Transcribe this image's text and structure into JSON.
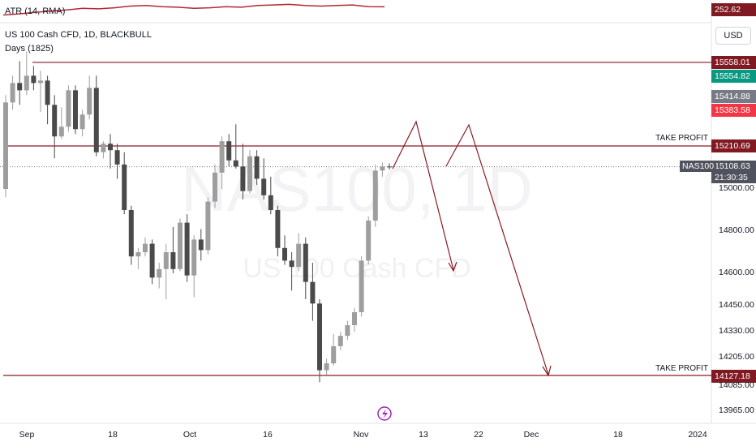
{
  "indicator_label": "ATR (14, RMA)",
  "atr_value": "252.62",
  "symbol_title": "US 100 Cash CFD, 1D, BLACKBULL",
  "days_label": "Days (1825)",
  "currency_button": "USD",
  "watermark_main": "NAS100, 1D",
  "watermark_sub": "US 100 Cash CFD",
  "symbol_tag": "NAS100",
  "countdown": "21:30:35",
  "take_profit_upper": "TAKE PROFIT",
  "take_profit_lower": "TAKE PROFIT",
  "price_labels": {
    "p15558": "15558.01",
    "p15554": "15554.82",
    "p15414": "15414.88",
    "p15383": "15383.58",
    "p15210": "15210.69",
    "p15108": "15108.63",
    "p14127": "14127.18"
  },
  "colors": {
    "level_line": "#8b1a24",
    "bull_candle": "#9e9e9e",
    "bear_candle": "#4a4a4a",
    "dark_red_pill": "#801922",
    "green_pill": "#089981",
    "red_pill": "#f23645",
    "grey_pill": "#787b86",
    "symbol_pill": "#50535e"
  },
  "chart_data": {
    "type": "candlestick",
    "y_axis_ticks": [
      "15000.00",
      "14800.00",
      "14600.00",
      "14450.00",
      "14330.00",
      "14205.00",
      "14085.00",
      "13965.00"
    ],
    "x_axis_ticks": [
      "Sep",
      "18",
      "Oct",
      "16",
      "Nov",
      "13",
      "22",
      "Dec",
      "18",
      "2024"
    ],
    "horizontal_levels": [
      15554.82,
      15210.69,
      14127.18
    ],
    "candles": [
      {
        "o": 15000,
        "h": 15420,
        "l": 14960,
        "c": 15390
      },
      {
        "o": 15390,
        "h": 15500,
        "l": 15360,
        "c": 15470
      },
      {
        "o": 15470,
        "h": 15560,
        "l": 15380,
        "c": 15440
      },
      {
        "o": 15440,
        "h": 15600,
        "l": 15420,
        "c": 15500
      },
      {
        "o": 15500,
        "h": 15540,
        "l": 15440,
        "c": 15470
      },
      {
        "o": 15470,
        "h": 15520,
        "l": 15350,
        "c": 15480
      },
      {
        "o": 15480,
        "h": 15500,
        "l": 15300,
        "c": 15380
      },
      {
        "o": 15380,
        "h": 15420,
        "l": 15150,
        "c": 15250
      },
      {
        "o": 15250,
        "h": 15370,
        "l": 15240,
        "c": 15290
      },
      {
        "o": 15290,
        "h": 15460,
        "l": 15270,
        "c": 15440
      },
      {
        "o": 15440,
        "h": 15460,
        "l": 15260,
        "c": 15280
      },
      {
        "o": 15280,
        "h": 15360,
        "l": 15250,
        "c": 15340
      },
      {
        "o": 15340,
        "h": 15500,
        "l": 15320,
        "c": 15450
      },
      {
        "o": 15450,
        "h": 15500,
        "l": 15160,
        "c": 15180
      },
      {
        "o": 15180,
        "h": 15230,
        "l": 15150,
        "c": 15220
      },
      {
        "o": 15220,
        "h": 15260,
        "l": 15100,
        "c": 15190
      },
      {
        "o": 15190,
        "h": 15220,
        "l": 15050,
        "c": 15120
      },
      {
        "o": 15120,
        "h": 15180,
        "l": 14880,
        "c": 14900
      },
      {
        "o": 14900,
        "h": 14920,
        "l": 14640,
        "c": 14680
      },
      {
        "o": 14680,
        "h": 14720,
        "l": 14620,
        "c": 14700
      },
      {
        "o": 14700,
        "h": 14770,
        "l": 14680,
        "c": 14740
      },
      {
        "o": 14740,
        "h": 14760,
        "l": 14550,
        "c": 14580
      },
      {
        "o": 14580,
        "h": 14650,
        "l": 14530,
        "c": 14620
      },
      {
        "o": 14620,
        "h": 14740,
        "l": 14480,
        "c": 14700
      },
      {
        "o": 14700,
        "h": 14820,
        "l": 14600,
        "c": 14620
      },
      {
        "o": 14620,
        "h": 14860,
        "l": 14610,
        "c": 14840
      },
      {
        "o": 14840,
        "h": 14880,
        "l": 14560,
        "c": 14590
      },
      {
        "o": 14590,
        "h": 14780,
        "l": 14490,
        "c": 14760
      },
      {
        "o": 14760,
        "h": 14810,
        "l": 14660,
        "c": 14710
      },
      {
        "o": 14710,
        "h": 14960,
        "l": 14690,
        "c": 14940
      },
      {
        "o": 14940,
        "h": 15120,
        "l": 14910,
        "c": 15080
      },
      {
        "o": 15080,
        "h": 15250,
        "l": 15000,
        "c": 15230
      },
      {
        "o": 15230,
        "h": 15260,
        "l": 15110,
        "c": 15140
      },
      {
        "o": 15140,
        "h": 15300,
        "l": 15100,
        "c": 15110
      },
      {
        "o": 15110,
        "h": 15220,
        "l": 14950,
        "c": 14990
      },
      {
        "o": 14990,
        "h": 15190,
        "l": 14980,
        "c": 15160
      },
      {
        "o": 15160,
        "h": 15190,
        "l": 15020,
        "c": 15050
      },
      {
        "o": 15050,
        "h": 15150,
        "l": 14950,
        "c": 14970
      },
      {
        "o": 14970,
        "h": 15060,
        "l": 14880,
        "c": 14900
      },
      {
        "o": 14900,
        "h": 14920,
        "l": 14680,
        "c": 14720
      },
      {
        "o": 14720,
        "h": 14780,
        "l": 14640,
        "c": 14660
      },
      {
        "o": 14660,
        "h": 14700,
        "l": 14520,
        "c": 14630
      },
      {
        "o": 14630,
        "h": 14790,
        "l": 14610,
        "c": 14740
      },
      {
        "o": 14740,
        "h": 14770,
        "l": 14480,
        "c": 14560
      },
      {
        "o": 14560,
        "h": 14650,
        "l": 14380,
        "c": 14460
      },
      {
        "o": 14460,
        "h": 14480,
        "l": 14100,
        "c": 14150
      },
      {
        "o": 14150,
        "h": 14200,
        "l": 14130,
        "c": 14180
      },
      {
        "o": 14180,
        "h": 14320,
        "l": 14170,
        "c": 14260
      },
      {
        "o": 14260,
        "h": 14330,
        "l": 14240,
        "c": 14310
      },
      {
        "o": 14310,
        "h": 14380,
        "l": 14290,
        "c": 14360
      },
      {
        "o": 14360,
        "h": 14440,
        "l": 14330,
        "c": 14420
      },
      {
        "o": 14420,
        "h": 14680,
        "l": 14400,
        "c": 14660
      },
      {
        "o": 14660,
        "h": 14870,
        "l": 14640,
        "c": 14850
      },
      {
        "o": 14850,
        "h": 15120,
        "l": 14820,
        "c": 15090
      },
      {
        "o": 15090,
        "h": 15130,
        "l": 15060,
        "c": 15110
      },
      {
        "o": 15110,
        "h": 15125,
        "l": 15095,
        "c": 15108.63
      }
    ],
    "atr_series": [
      238,
      240,
      243,
      245,
      247,
      250,
      249,
      251,
      254,
      255,
      253,
      252,
      250,
      251,
      253,
      252,
      255,
      256,
      257,
      255,
      254,
      255,
      256,
      253,
      252.62
    ]
  }
}
